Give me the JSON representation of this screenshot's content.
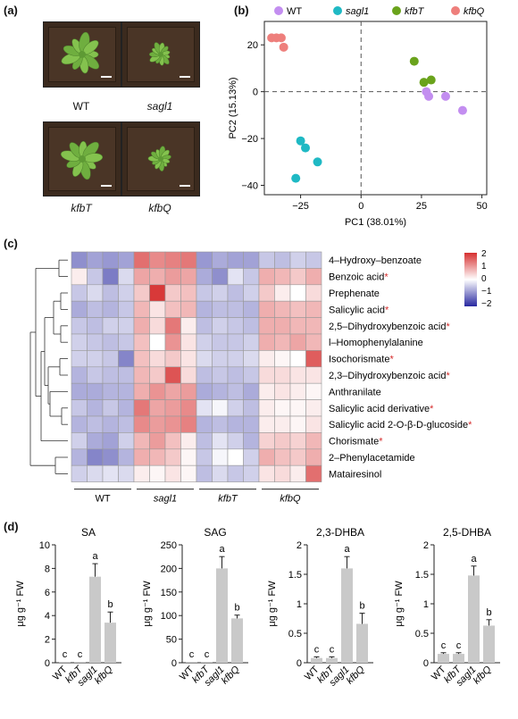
{
  "panels": {
    "a_label": "(a)",
    "b_label": "(b)",
    "c_label": "(c)",
    "d_label": "(d)"
  },
  "photos": {
    "labels": [
      "WT",
      "sagl1",
      "kfbT",
      "kfbQ"
    ],
    "italic": [
      false,
      true,
      true,
      true
    ]
  },
  "pca": {
    "xlabel": "PC1 (38.01%)",
    "ylabel": "PC2 (15.13%)",
    "xticks": [
      -25,
      0,
      25,
      50
    ],
    "yticks": [
      -40,
      -20,
      0,
      20
    ],
    "xlim": [
      -40,
      52
    ],
    "ylim": [
      -44,
      30
    ],
    "legend": [
      {
        "name": "WT",
        "italic": false,
        "color": "#c38ef0"
      },
      {
        "name": "sagl1",
        "italic": true,
        "color": "#1fb9c4"
      },
      {
        "name": "kfbT",
        "italic": true,
        "color": "#6aa31c"
      },
      {
        "name": "kfbQ",
        "italic": true,
        "color": "#ee7f7c"
      }
    ],
    "points": {
      "WT": [
        [
          27,
          0
        ],
        [
          28,
          -2
        ],
        [
          35,
          -2
        ],
        [
          42,
          -8
        ]
      ],
      "sagl1": [
        [
          -27,
          -37
        ],
        [
          -25,
          -21
        ],
        [
          -23,
          -24
        ],
        [
          -18,
          -30
        ]
      ],
      "kfbT": [
        [
          22,
          13
        ],
        [
          26,
          4
        ],
        [
          29,
          5
        ]
      ],
      "kfbQ": [
        [
          -37,
          23
        ],
        [
          -35,
          23
        ],
        [
          -33,
          23
        ],
        [
          -32,
          19
        ]
      ]
    }
  },
  "heatmap": {
    "rows": [
      {
        "label": "4–Hydroxy–benzoate",
        "star": false
      },
      {
        "label": "Benzoic acid",
        "star": true
      },
      {
        "label": "Prephenate",
        "star": false
      },
      {
        "label": "Salicylic acid",
        "star": true
      },
      {
        "label": "2,5–Dihydroxybenzoic acid",
        "star": true
      },
      {
        "label": "l–Homophenylalanine",
        "star": false
      },
      {
        "label": "Isochorismate",
        "star": true
      },
      {
        "label": "2,3–Dihydroxybenzoic acid",
        "star": true
      },
      {
        "label": "Anthranilate",
        "star": false
      },
      {
        "label": "Salicylic acid derivative",
        "star": true
      },
      {
        "label": "Salicylic acid 2-O-β-D-glucoside",
        "star": true
      },
      {
        "label": "Chorismate",
        "star": true
      },
      {
        "label": "2–Phenylacetamide",
        "star": false
      },
      {
        "label": "Matairesinol",
        "star": false
      }
    ],
    "groups": [
      {
        "name": "WT",
        "italic": false
      },
      {
        "name": "sagl1",
        "italic": true
      },
      {
        "name": "kfbT",
        "italic": true
      },
      {
        "name": "kfbQ",
        "italic": true
      }
    ],
    "star_symbol": "*",
    "legend_ticks": [
      "2",
      "1",
      "0",
      "−1",
      "−2"
    ],
    "values": [
      [
        -1.2,
        -1.0,
        -1.1,
        -1.0,
        1.6,
        1.3,
        1.4,
        1.5,
        -1.1,
        -0.9,
        -1.0,
        -1.0,
        -0.6,
        -0.7,
        -0.5,
        -0.6
      ],
      [
        0.2,
        -0.6,
        -1.4,
        -0.4,
        1.0,
        0.9,
        1.1,
        1.0,
        -0.9,
        -1.2,
        -0.3,
        -0.6,
        0.9,
        0.8,
        0.6,
        0.9
      ],
      [
        -0.6,
        -0.4,
        -0.7,
        -0.5,
        0.6,
        2.2,
        0.6,
        0.7,
        -0.6,
        -0.5,
        -0.7,
        -0.5,
        0.6,
        0.2,
        0.0,
        0.4
      ],
      [
        -0.9,
        -0.7,
        -0.8,
        -0.6,
        0.8,
        0.3,
        0.7,
        0.8,
        -0.8,
        -0.7,
        -0.7,
        -0.8,
        0.9,
        0.8,
        0.7,
        0.8
      ],
      [
        -0.6,
        -0.7,
        -0.5,
        -0.5,
        0.9,
        0.4,
        1.5,
        0.2,
        -0.7,
        -0.5,
        -0.6,
        -0.7,
        0.9,
        0.9,
        0.8,
        0.8
      ],
      [
        -0.5,
        -0.6,
        -0.7,
        -0.6,
        0.7,
        0.0,
        1.2,
        0.3,
        -0.5,
        -0.6,
        -0.6,
        -0.5,
        0.9,
        0.8,
        1.0,
        0.8
      ],
      [
        -0.5,
        -0.5,
        -0.6,
        -1.3,
        0.7,
        0.4,
        0.6,
        0.3,
        -0.4,
        -0.5,
        -0.5,
        -0.4,
        0.2,
        0.1,
        0.0,
        1.8
      ],
      [
        -0.8,
        -0.6,
        -0.7,
        -0.7,
        0.8,
        0.6,
        1.9,
        0.4,
        -0.7,
        -0.6,
        -0.7,
        -0.6,
        0.4,
        0.4,
        0.3,
        0.3
      ],
      [
        -0.9,
        -0.9,
        -0.8,
        -0.8,
        0.9,
        1.2,
        1.0,
        1.1,
        -0.9,
        -0.8,
        -0.7,
        -0.9,
        0.2,
        0.3,
        0.2,
        0.1
      ],
      [
        -0.6,
        -0.8,
        -0.6,
        -0.8,
        1.5,
        1.0,
        1.1,
        1.3,
        -0.3,
        -0.1,
        -0.5,
        -0.7,
        0.2,
        0.1,
        0.1,
        0.2
      ],
      [
        -0.8,
        -0.7,
        -0.8,
        -0.7,
        1.3,
        1.1,
        1.2,
        1.4,
        -0.8,
        -0.7,
        -0.8,
        -0.8,
        0.2,
        0.2,
        0.1,
        0.3
      ],
      [
        -0.5,
        -0.9,
        -1.0,
        -0.5,
        0.8,
        1.1,
        0.7,
        0.2,
        -0.7,
        -0.3,
        -0.5,
        -0.8,
        0.5,
        0.6,
        0.5,
        0.8
      ],
      [
        -0.8,
        -1.3,
        -1.2,
        -0.8,
        0.9,
        0.8,
        0.6,
        0.1,
        -0.6,
        -0.1,
        0.0,
        -0.5,
        0.9,
        0.7,
        0.6,
        0.9
      ],
      [
        -0.5,
        -0.4,
        -0.3,
        -0.4,
        0.2,
        0.1,
        0.3,
        0.1,
        -0.7,
        -0.4,
        -0.6,
        -0.5,
        0.3,
        0.4,
        0.2,
        1.6
      ]
    ]
  },
  "chart_data": [
    {
      "type": "bar",
      "title": "SA",
      "ylabel": "μg g⁻¹ FW",
      "categories": [
        "WT",
        "kfbT",
        "sagl1",
        "kfbQ"
      ],
      "categories_italic": [
        false,
        true,
        true,
        true
      ],
      "values": [
        0.05,
        0.05,
        7.3,
        3.4
      ],
      "errors": [
        0,
        0,
        1.1,
        0.9
      ],
      "letters": [
        "c",
        "c",
        "a",
        "b"
      ],
      "ylim": [
        0,
        10
      ],
      "yticks": [
        0,
        2,
        4,
        6,
        8,
        10
      ]
    },
    {
      "type": "bar",
      "title": "SAG",
      "ylabel": "μg g⁻¹ FW",
      "categories": [
        "WT",
        "kfbT",
        "sagl1",
        "kfbQ"
      ],
      "categories_italic": [
        false,
        true,
        true,
        true
      ],
      "values": [
        0.5,
        0.5,
        200,
        94
      ],
      "errors": [
        0,
        0,
        25,
        7
      ],
      "letters": [
        "c",
        "c",
        "a",
        "b"
      ],
      "ylim": [
        0,
        250
      ],
      "yticks": [
        0,
        50,
        100,
        150,
        200,
        250
      ]
    },
    {
      "type": "bar",
      "title": "2,3-DHBA",
      "ylabel": "μg g⁻¹ FW",
      "categories": [
        "WT",
        "kfbT",
        "sagl1",
        "kfbQ"
      ],
      "categories_italic": [
        false,
        true,
        true,
        true
      ],
      "values": [
        0.08,
        0.08,
        1.6,
        0.66
      ],
      "errors": [
        0.02,
        0.02,
        0.2,
        0.18
      ],
      "letters": [
        "c",
        "c",
        "a",
        "b"
      ],
      "ylim": [
        0,
        2
      ],
      "yticks": [
        0,
        0.5,
        1,
        1.5,
        2
      ],
      "ytick_labels": [
        "0",
        "0.5",
        "1",
        "1.5",
        "2"
      ]
    },
    {
      "type": "bar",
      "title": "2,5-DHBA",
      "ylabel": "μg g⁻¹ FW",
      "categories": [
        "WT",
        "kfbT",
        "sagl1",
        "kfbQ"
      ],
      "categories_italic": [
        false,
        true,
        true,
        true
      ],
      "values": [
        0.15,
        0.15,
        1.48,
        0.63
      ],
      "errors": [
        0.02,
        0.02,
        0.16,
        0.1
      ],
      "letters": [
        "c",
        "c",
        "a",
        "b"
      ],
      "ylim": [
        0,
        2
      ],
      "yticks": [
        0,
        0.5,
        1,
        1.5,
        2
      ],
      "ytick_labels": [
        "0",
        "0.5",
        "1",
        "1.5",
        "2"
      ]
    }
  ]
}
